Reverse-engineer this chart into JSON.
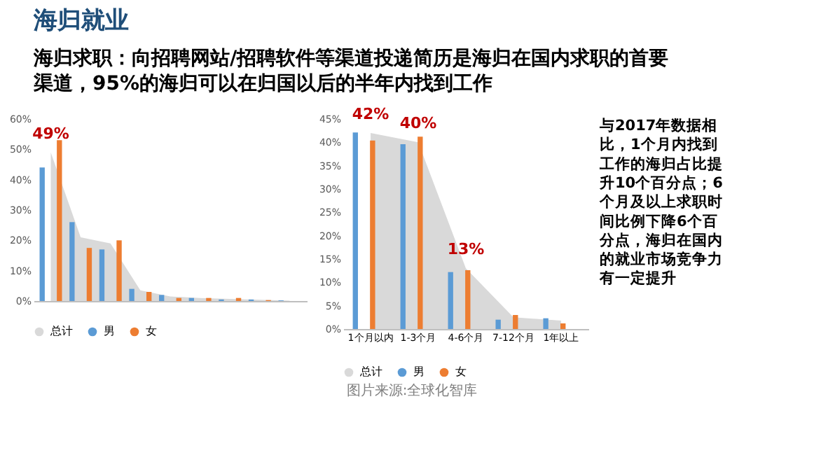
{
  "chart_data": [
    {
      "type": "bar",
      "title": "海归就业",
      "subtitle": "海归求职：向招聘网站/招聘软件等渠道投递简历是海归在国内求职的首要渠道，95%的海归可以在归国以后的半年内找到工作",
      "categories": [
        null,
        null,
        null,
        null,
        null,
        null,
        null,
        null,
        null
      ],
      "series": [
        {
          "name": "总计",
          "type": "area",
          "color": "#d9d9d9",
          "values": [
            49,
            21,
            19,
            3.5,
            1.5,
            1,
            0.7,
            0.4,
            0.1
          ],
          "value_labels": [
            "49%",
            null,
            null,
            null,
            null,
            null,
            null,
            null,
            null
          ]
        },
        {
          "name": "男",
          "color": "#5b9bd5",
          "values": [
            44,
            26,
            17,
            4,
            2,
            1,
            0.5,
            0.5,
            0.2
          ]
        },
        {
          "name": "女",
          "color": "#ed7d31",
          "values": [
            53,
            17.5,
            20,
            3,
            1,
            1,
            1,
            0.3,
            null
          ]
        }
      ],
      "ylim": [
        0,
        60
      ],
      "yticks": [
        {
          "value": 0,
          "label": "0%"
        },
        {
          "value": 10,
          "label": "10%"
        },
        {
          "value": 20,
          "label": "20%"
        },
        {
          "value": 30,
          "label": "30%"
        },
        {
          "value": 40,
          "label": "40%"
        },
        {
          "value": 50,
          "label": "50%"
        },
        {
          "value": 60,
          "label": "60%"
        }
      ],
      "tick_labels": "y",
      "legend": "bottom"
    },
    {
      "type": "bar",
      "categories": [
        "1个月以内",
        "1-3个月",
        "4-6个月",
        "7-12个月",
        "1年以上"
      ],
      "series": [
        {
          "name": "总计",
          "type": "area",
          "color": "#d9d9d9",
          "values": [
            42,
            40,
            13,
            2.5,
            1.8
          ],
          "value_labels": [
            "42%",
            "40%",
            "13%",
            null,
            null
          ]
        },
        {
          "name": "男",
          "color": "#5b9bd5",
          "values": [
            42.1,
            39.6,
            12.2,
            2,
            2.3
          ]
        },
        {
          "name": "女",
          "color": "#ed7d31",
          "values": [
            40.4,
            41.2,
            12.6,
            3,
            1.2
          ]
        }
      ],
      "ylim": [
        0,
        45
      ],
      "yticks": [
        {
          "value": 0,
          "label": "0%"
        },
        {
          "value": 5,
          "label": "5%"
        },
        {
          "value": 10,
          "label": "10%"
        },
        {
          "value": 15,
          "label": "15%"
        },
        {
          "value": 20,
          "label": "20%"
        },
        {
          "value": 25,
          "label": "25%"
        },
        {
          "value": 30,
          "label": "30%"
        },
        {
          "value": 35,
          "label": "35%"
        },
        {
          "value": 40,
          "label": "40%"
        },
        {
          "value": 45,
          "label": "45%"
        }
      ],
      "legend": "bottom",
      "annotations": [
        "与2017年数据相比，1个月内找到工作的海归占比提升10个百分点；6个月及以上求职时间比例下降6个百分点，海归在国内的就业市场竞争力有一定提升",
        "图片来源:全球化智库"
      ]
    }
  ]
}
